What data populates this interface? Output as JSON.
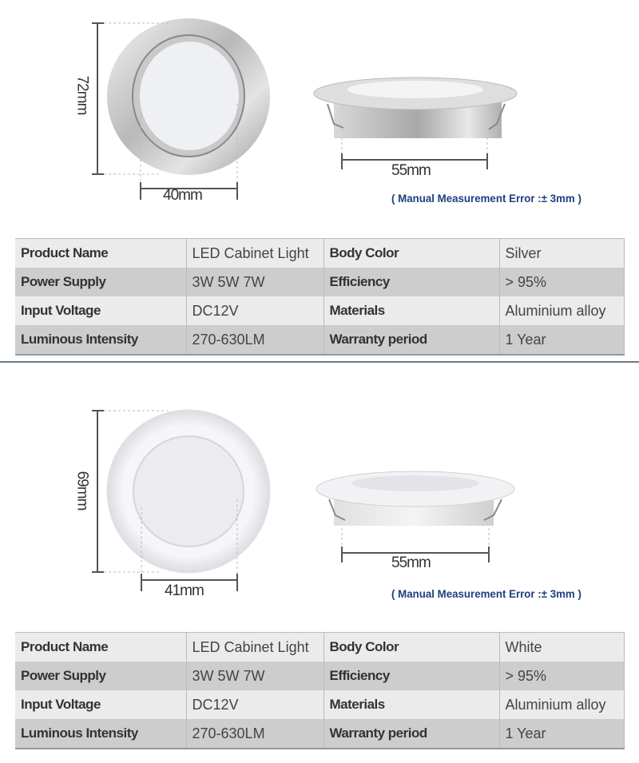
{
  "products": [
    {
      "dimensions": {
        "height": "72mm",
        "cutout": "40mm",
        "side": "55mm"
      },
      "error_note": "( Manual Measurement Error :± 3mm )",
      "specs": [
        [
          "Product Name",
          "LED Cabinet Light",
          "Body Color",
          "Silver"
        ],
        [
          "Power Supply",
          "3W 5W 7W",
          "Efficiency",
          "> 95%"
        ],
        [
          "Input Voltage",
          "DC12V",
          "Materials",
          "Aluminium alloy"
        ],
        [
          "Luminous Intensity",
          "270-630LM",
          "Warranty period",
          "1 Year"
        ]
      ]
    },
    {
      "dimensions": {
        "height": "69mm",
        "cutout": "41mm",
        "side": "55mm"
      },
      "error_note": "( Manual Measurement Error :± 3mm )",
      "specs": [
        [
          "Product Name",
          "LED Cabinet Light",
          "Body Color",
          "White"
        ],
        [
          "Power Supply",
          "3W 5W 7W",
          "Efficiency",
          "> 95%"
        ],
        [
          "Input Voltage",
          "DC12V",
          "Materials",
          "Aluminium alloy"
        ],
        [
          "Luminous Intensity",
          "270-630LM",
          "Warranty period",
          "1 Year"
        ]
      ]
    }
  ],
  "colors": {
    "error_text": "#1d3f7e",
    "row_light": "#ebebeb",
    "row_dark": "#cdcdcd"
  }
}
